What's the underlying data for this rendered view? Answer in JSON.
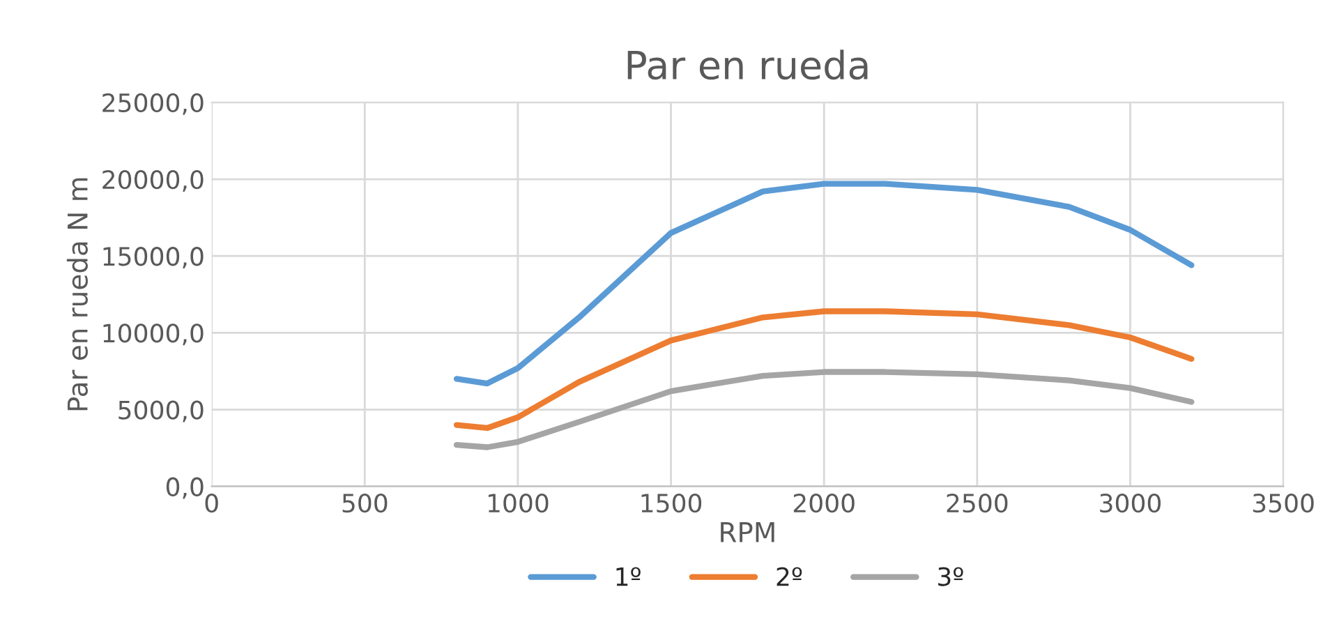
{
  "chart_data": {
    "type": "line",
    "title": "Par en rueda",
    "xlabel": "RPM",
    "ylabel": "Par en rueda N m",
    "xlim": [
      0,
      3500
    ],
    "xticks": [
      0,
      500,
      1000,
      1500,
      2000,
      2500,
      3000,
      3500
    ],
    "ylim": [
      0,
      25000
    ],
    "yticks": [
      {
        "value": 0,
        "label": "0,0"
      },
      {
        "value": 5000,
        "label": "5000,0"
      },
      {
        "value": 10000,
        "label": "10000,0"
      },
      {
        "value": 15000,
        "label": "15000,0"
      },
      {
        "value": 20000,
        "label": "20000,0"
      },
      {
        "value": 25000,
        "label": "25000,0"
      }
    ],
    "grid": true,
    "legend": "bottom",
    "marker": "none",
    "line_style": "solid",
    "x": [
      800,
      900,
      1000,
      1200,
      1500,
      1800,
      2000,
      2200,
      2500,
      2800,
      3000,
      3200
    ],
    "series": [
      {
        "name": "1º",
        "color": "#5b9bd5",
        "values": [
          7000,
          6700,
          7700,
          11000,
          16500,
          19200,
          19700,
          19700,
          19300,
          18200,
          16700,
          14400
        ]
      },
      {
        "name": "2º",
        "color": "#ed7d31",
        "values": [
          4000,
          3800,
          4500,
          6800,
          9500,
          11000,
          11400,
          11400,
          11200,
          10500,
          9700,
          8300
        ]
      },
      {
        "name": "3º",
        "color": "#a5a5a5",
        "values": [
          2700,
          2550,
          2900,
          4200,
          6200,
          7200,
          7450,
          7450,
          7300,
          6900,
          6400,
          5500
        ]
      }
    ]
  }
}
